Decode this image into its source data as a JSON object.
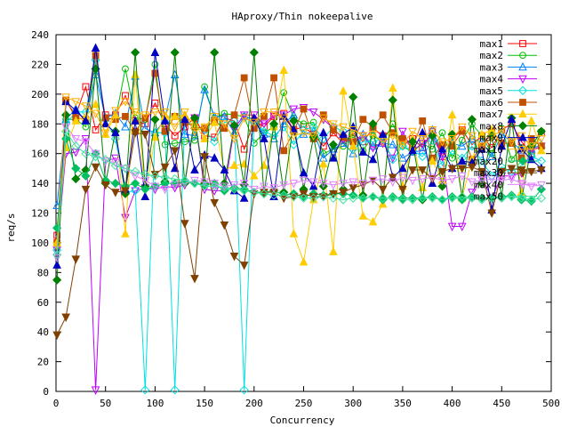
{
  "chart_data": {
    "type": "line",
    "title": "HAproxy/Thin nokeepalive",
    "xlabel": "Concurrency",
    "ylabel": "req/s",
    "xlim": [
      0,
      500
    ],
    "ylim": [
      0,
      240
    ],
    "xticks": [
      0,
      50,
      100,
      150,
      200,
      250,
      300,
      350,
      400,
      450,
      500
    ],
    "yticks": [
      0,
      20,
      40,
      60,
      80,
      100,
      120,
      140,
      160,
      180,
      200,
      220,
      240
    ],
    "grid": false,
    "legend": "top-right",
    "x": [
      1,
      10,
      20,
      30,
      40,
      50,
      60,
      70,
      80,
      90,
      100,
      110,
      120,
      130,
      140,
      150,
      160,
      170,
      180,
      190,
      200,
      210,
      220,
      230,
      240,
      250,
      260,
      270,
      280,
      290,
      300,
      310,
      320,
      330,
      340,
      350,
      360,
      370,
      380,
      390,
      400,
      410,
      420,
      430,
      440,
      450,
      460,
      470,
      480,
      490
    ],
    "series": [
      {
        "name": "max1",
        "color": "#ff0000",
        "marker": "square-open",
        "values": [
          105,
          195,
          186,
          205,
          176,
          186,
          186,
          199,
          182,
          180,
          194,
          180,
          172,
          178,
          184,
          172,
          171,
          184,
          182,
          163,
          182,
          178,
          185,
          187,
          176,
          178,
          173,
          165,
          174,
          167,
          174,
          168,
          177,
          172,
          176,
          166,
          170,
          164,
          175,
          158,
          170,
          176,
          166,
          172,
          164,
          176,
          180,
          168,
          160,
          174
        ]
      },
      {
        "name": "max2",
        "color": "#00c000",
        "marker": "circle-open",
        "values": [
          100,
          183,
          183,
          178,
          223,
          184,
          183,
          217,
          184,
          183,
          220,
          166,
          167,
          168,
          169,
          205,
          184,
          187,
          186,
          185,
          167,
          174,
          178,
          201,
          184,
          180,
          181,
          160,
          163,
          165,
          173,
          162,
          172,
          168,
          180,
          165,
          161,
          167,
          163,
          174,
          157,
          169,
          180,
          172,
          160,
          177,
          156,
          164,
          159,
          175
        ]
      },
      {
        "name": "max3",
        "color": "#0080ff",
        "marker": "triangle-open",
        "values": [
          125,
          183,
          190,
          182,
          213,
          184,
          187,
          178,
          212,
          177,
          174,
          183,
          213,
          173,
          172,
          203,
          185,
          185,
          174,
          185,
          183,
          173,
          170,
          180,
          186,
          173,
          175,
          157,
          163,
          167,
          160,
          173,
          165,
          167,
          166,
          157,
          161,
          162,
          176,
          160,
          167,
          165,
          170,
          168,
          158,
          173,
          168,
          162,
          163,
          166
        ]
      },
      {
        "name": "max4",
        "color": "#c000ff",
        "marker": "triangle-down-open",
        "values": [
          95,
          160,
          161,
          170,
          1,
          155,
          157,
          117,
          135,
          137,
          136,
          138,
          137,
          139,
          184,
          136,
          135,
          135,
          177,
          186,
          186,
          180,
          186,
          186,
          190,
          191,
          188,
          183,
          177,
          170,
          167,
          172,
          164,
          167,
          157,
          175,
          162,
          167,
          172,
          158,
          111,
          111,
          134,
          144,
          130,
          145,
          145,
          147,
          162,
          165
        ]
      },
      {
        "name": "max5",
        "color": "#00e0e0",
        "marker": "diamond-open",
        "values": [
          95,
          180,
          188,
          188,
          223,
          183,
          170,
          134,
          135,
          1,
          174,
          174,
          1,
          183,
          177,
          176,
          168,
          181,
          182,
          1,
          181,
          175,
          172,
          178,
          166,
          176,
          178,
          170,
          178,
          175,
          163,
          168,
          168,
          170,
          156,
          165,
          162,
          158,
          169,
          152,
          162,
          157,
          165,
          155,
          145,
          151,
          148,
          152,
          158,
          155
        ]
      },
      {
        "name": "max6",
        "color": "#c05000",
        "marker": "square-filled",
        "values": [
          100,
          196,
          184,
          183,
          226,
          184,
          183,
          185,
          175,
          184,
          214,
          175,
          185,
          181,
          178,
          177,
          182,
          177,
          186,
          211,
          177,
          185,
          211,
          162,
          175,
          190,
          170,
          186,
          176,
          171,
          168,
          183,
          178,
          186,
          174,
          170,
          164,
          182,
          157,
          166,
          165,
          175,
          156,
          165,
          175,
          167,
          167,
          157,
          170,
          165
        ]
      },
      {
        "name": "max7",
        "color": "#ffcc00",
        "marker": "triangle-filled",
        "values": [
          100,
          164,
          182,
          185,
          193,
          173,
          186,
          106,
          213,
          131,
          171,
          185,
          185,
          186,
          180,
          170,
          181,
          149,
          152,
          153,
          145,
          152,
          178,
          216,
          106,
          87,
          129,
          153,
          94,
          202,
          165,
          118,
          114,
          126,
          204,
          138,
          170,
          137,
          155,
          142,
          186,
          130,
          156,
          173,
          176,
          165,
          183,
          134,
          182,
          162
        ]
      },
      {
        "name": "max8",
        "color": "#008000",
        "marker": "diamond-filled",
        "values": [
          75,
          186,
          143,
          149,
          217,
          140,
          175,
          133,
          228,
          138,
          183,
          141,
          228,
          140,
          184,
          140,
          228,
          140,
          179,
          139,
          228,
          133,
          180,
          134,
          182,
          136,
          171,
          138,
          166,
          136,
          198,
          132,
          180,
          130,
          196,
          129,
          168,
          129,
          172,
          138,
          173,
          131,
          183,
          140,
          172,
          131,
          184,
          129,
          165,
          175
        ]
      },
      {
        "name": "max9",
        "color": "#0000c0",
        "marker": "triangle-filled",
        "values": [
          85,
          195,
          189,
          182,
          231,
          180,
          174,
          136,
          182,
          131,
          228,
          182,
          150,
          183,
          149,
          159,
          157,
          149,
          135,
          130,
          184,
          170,
          131,
          185,
          176,
          147,
          138,
          174,
          157,
          173,
          178,
          161,
          156,
          173,
          144,
          150,
          162,
          174,
          140,
          163,
          150,
          155,
          154,
          163,
          122,
          165,
          183,
          163,
          156,
          150
        ]
      },
      {
        "name": "max10",
        "color": "#ffb000",
        "marker": "triangle-down-open",
        "values": [
          98,
          198,
          195,
          192,
          187,
          174,
          189,
          195,
          188,
          186,
          188,
          188,
          178,
          188,
          175,
          178,
          185,
          180,
          170,
          184,
          181,
          188,
          188,
          184,
          172,
          174,
          172,
          184,
          180,
          178,
          176,
          172,
          173,
          168,
          172,
          166,
          175,
          170,
          176,
          168,
          170,
          178,
          172,
          165,
          171,
          176,
          168,
          172,
          165,
          170
        ]
      },
      {
        "name": "max20",
        "color": "#00c060",
        "marker": "diamond-filled",
        "values": [
          110,
          170,
          150,
          145,
          160,
          142,
          140,
          138,
          140,
          136,
          138,
          140,
          140,
          141,
          140,
          139,
          140,
          135,
          137,
          136,
          134,
          134,
          135,
          132,
          133,
          131,
          133,
          132,
          133,
          133,
          132,
          130,
          131,
          129,
          131,
          130,
          130,
          130,
          131,
          129,
          131,
          129,
          131,
          130,
          130,
          131,
          132,
          129,
          128,
          136
        ]
      },
      {
        "name": "max30",
        "color": "#804000",
        "marker": "triangle-down-filled",
        "values": [
          38,
          50,
          89,
          136,
          151,
          139,
          134,
          135,
          174,
          173,
          146,
          151,
          162,
          113,
          76,
          158,
          127,
          112,
          91,
          85,
          133,
          134,
          134,
          130,
          131,
          133,
          131,
          131,
          133,
          134,
          137,
          139,
          142,
          136,
          144,
          136,
          149,
          149,
          143,
          148,
          150,
          150,
          151,
          148,
          120,
          148,
          150,
          149,
          148,
          149
        ]
      },
      {
        "name": "max40",
        "color": "#e080ff",
        "marker": "triangle-down-open",
        "values": [
          90,
          178,
          170,
          168,
          160,
          155,
          154,
          150,
          145,
          142,
          138,
          136,
          139,
          140,
          142,
          141,
          140,
          138,
          139,
          140,
          136,
          138,
          137,
          139,
          140,
          142,
          141,
          140,
          139,
          140,
          141,
          140,
          142,
          143,
          141,
          144,
          142,
          143,
          144,
          142,
          143,
          145,
          141,
          142,
          143,
          142,
          143,
          140,
          138,
          139
        ]
      },
      {
        "name": "max50",
        "color": "#40e0a0",
        "marker": "diamond-open",
        "values": [
          92,
          175,
          165,
          160,
          158,
          156,
          152,
          150,
          148,
          146,
          145,
          144,
          143,
          142,
          140,
          138,
          138,
          137,
          136,
          135,
          134,
          133,
          132,
          132,
          131,
          130,
          130,
          131,
          130,
          129,
          130,
          130,
          131,
          130,
          130,
          129,
          129,
          130,
          130,
          129,
          130,
          131,
          130,
          129,
          130,
          130,
          131,
          130,
          129,
          130
        ]
      }
    ]
  }
}
